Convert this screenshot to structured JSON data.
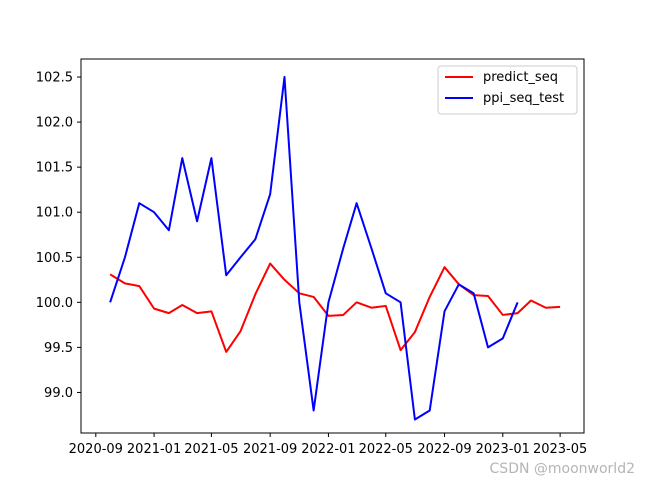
{
  "chart_data": {
    "type": "line",
    "title": "",
    "xlabel": "",
    "ylabel": "",
    "x_tick_labels": [
      "2020-09",
      "2021-01",
      "2021-05",
      "2021-09",
      "2022-01",
      "2022-05",
      "2022-09",
      "2023-01",
      "2023-05"
    ],
    "y_tick_labels": [
      "99.0",
      "99.5",
      "100.0",
      "100.5",
      "101.0",
      "101.5",
      "102.0",
      "102.5"
    ],
    "y_ticks": [
      99.0,
      99.5,
      100.0,
      100.5,
      101.0,
      101.5,
      102.0,
      102.5
    ],
    "ylim": [
      98.55,
      102.7
    ],
    "xlim": [
      "2020-08-01",
      "2023-06-20"
    ],
    "legend_position": "top-right",
    "grid": false,
    "series": [
      {
        "name": "predict_seq",
        "color": "#ff0000",
        "x": [
          "2020-10-01",
          "2020-11-01",
          "2020-12-01",
          "2021-01-01",
          "2021-02-01",
          "2021-03-01",
          "2021-04-01",
          "2021-05-01",
          "2021-06-01",
          "2021-07-01",
          "2021-08-01",
          "2021-09-01",
          "2021-10-01",
          "2021-11-01",
          "2021-12-01",
          "2022-01-01",
          "2022-02-01",
          "2022-03-01",
          "2022-04-01",
          "2022-05-01",
          "2022-06-01",
          "2022-07-01",
          "2022-08-01",
          "2022-09-01",
          "2022-10-01",
          "2022-11-01",
          "2022-12-01",
          "2023-01-01",
          "2023-02-01",
          "2023-03-01",
          "2023-04-01",
          "2023-05-01"
        ],
        "values": [
          100.31,
          100.21,
          100.18,
          99.93,
          99.88,
          99.97,
          99.88,
          99.9,
          99.45,
          99.68,
          100.09,
          100.43,
          100.25,
          100.1,
          100.06,
          99.85,
          99.86,
          100.0,
          99.94,
          99.96,
          99.47,
          99.67,
          100.06,
          100.39,
          100.2,
          100.08,
          100.07,
          99.86,
          99.88,
          100.02,
          99.94,
          99.95
        ]
      },
      {
        "name": "ppi_seq_test",
        "color": "#0000ff",
        "x": [
          "2020-10-01",
          "2020-11-01",
          "2020-12-01",
          "2021-01-01",
          "2021-02-01",
          "2021-03-01",
          "2021-04-01",
          "2021-05-01",
          "2021-06-01",
          "2021-07-01",
          "2021-08-01",
          "2021-09-01",
          "2021-10-01",
          "2021-11-01",
          "2021-12-01",
          "2022-01-01",
          "2022-02-01",
          "2022-03-01",
          "2022-04-01",
          "2022-05-01",
          "2022-06-01",
          "2022-07-01",
          "2022-08-01",
          "2022-09-01",
          "2022-10-01",
          "2022-11-01",
          "2022-12-01",
          "2023-01-01",
          "2023-02-01"
        ],
        "values": [
          100.0,
          100.5,
          101.1,
          101.0,
          100.8,
          101.6,
          100.9,
          101.6,
          100.3,
          100.5,
          100.7,
          101.2,
          102.5,
          100.0,
          98.8,
          100.0,
          100.6,
          101.1,
          100.6,
          100.1,
          100.0,
          98.7,
          98.8,
          99.9,
          100.2,
          100.1,
          99.5,
          99.6,
          100.0
        ]
      }
    ]
  },
  "watermark": "CSDN @moonworld2"
}
